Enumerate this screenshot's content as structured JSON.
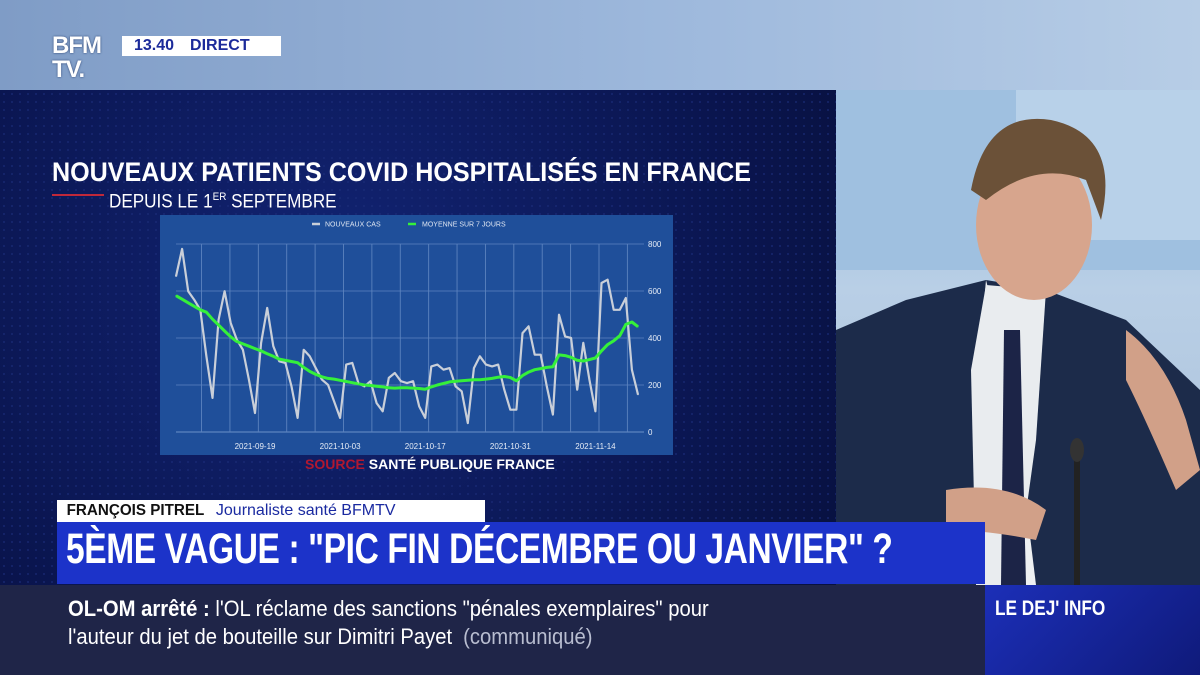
{
  "broadcast": {
    "channel_logo": "BFM TV.",
    "time": "13.40",
    "live_label": "DIRECT"
  },
  "graphic": {
    "title": "NOUVEAUX PATIENTS COVID HOSPITALISÉS EN FRANCE",
    "subtitle_pre": "DEPUIS LE 1",
    "subtitle_sup": "ER",
    "subtitle_post": " SEPTEMBRE",
    "source_label": "SOURCE",
    "source_name": "SANTÉ PUBLIQUE FRANCE"
  },
  "lower_third": {
    "name": "FRANÇOIS PITREL",
    "role": "Journaliste santé BFMTV",
    "headline": "5ÈME VAGUE : \"PIC FIN DÉCEMBRE OU JANVIER\" ?"
  },
  "ticker": {
    "topic": "OL-OM arrêté",
    "separator": ":",
    "line1": "l'OL réclame des sanctions \"pénales exemplaires\" pour",
    "line2": "l'auteur du jet de bouteille sur Dimitri Payet",
    "note": "(communiqué)",
    "program": "LE DEJ' INFO"
  },
  "colors": {
    "chart_bg": "#1f4f9a",
    "new_cases": "#c9cfd9",
    "avg": "#35f03a",
    "headline_bar": "#1c33c9"
  },
  "chart_data": {
    "type": "line",
    "legend": [
      "NOUVEAUX CAS",
      "MOYENNE SUR 7 JOURS"
    ],
    "legend_position": "top-center",
    "x_start": "2021-09-06",
    "x_end": "2021-11-21",
    "x_ticks": [
      "2021-09-19",
      "2021-10-03",
      "2021-10-17",
      "2021-10-31",
      "2021-11-14"
    ],
    "y_ticks": [
      0,
      200,
      400,
      600,
      800
    ],
    "ylim": [
      0,
      800
    ],
    "grid": true,
    "series": [
      {
        "name": "NOUVEAUX CAS",
        "values": [
          662,
          779,
          599,
          563,
          520,
          322,
          145,
          478,
          599,
          464,
          393,
          350,
          223,
          81,
          379,
          528,
          365,
          301,
          294,
          194,
          60,
          350,
          322,
          272,
          223,
          201,
          130,
          60,
          287,
          294,
          208,
          194,
          216,
          123,
          88,
          230,
          251,
          216,
          208,
          216,
          109,
          60,
          279,
          287,
          265,
          272,
          194,
          173,
          38,
          272,
          322,
          287,
          279,
          287,
          180,
          95,
          95,
          421,
          450,
          329,
          329,
          194,
          74,
          499,
          407,
          400,
          180,
          379,
          223,
          88,
          634,
          648,
          520,
          520,
          570,
          265,
          159
        ]
      },
      {
        "name": "MOYENNE SUR 7 JOURS",
        "values": [
          580,
          565,
          550,
          535,
          520,
          510,
          480,
          455,
          430,
          405,
          385,
          375,
          365,
          355,
          345,
          333,
          322,
          310,
          305,
          300,
          295,
          275,
          258,
          245,
          235,
          228,
          225,
          220,
          215,
          210,
          205,
          200,
          198,
          195,
          192,
          188,
          187,
          188,
          188,
          187,
          185,
          182,
          192,
          200,
          207,
          213,
          216,
          218,
          220,
          222,
          222,
          225,
          228,
          233,
          236,
          232,
          218,
          240,
          255,
          265,
          270,
          275,
          278,
          328,
          325,
          318,
          305,
          302,
          308,
          315,
          345,
          372,
          388,
          410,
          458,
          468,
          448
        ]
      }
    ]
  }
}
